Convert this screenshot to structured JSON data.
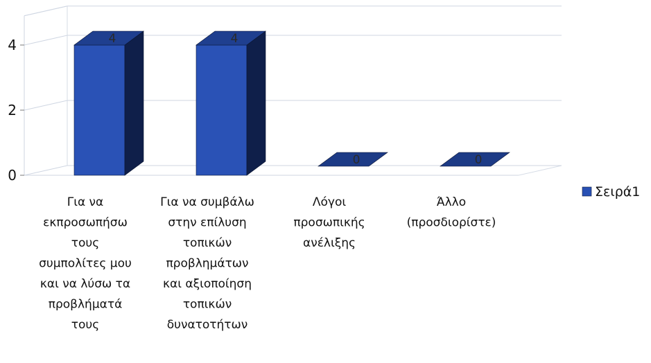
{
  "chart_data": {
    "type": "bar",
    "categories": [
      [
        "Για να",
        "εκπροσωπήσω",
        "τους",
        "συμπολίτες μου",
        "και να λύσω τα",
        "προβλήματά",
        "τους"
      ],
      [
        "Για να συμβάλω",
        "στην επίλυση",
        "τοπικών",
        "προβλημάτων",
        "και αξιοποίηση",
        "τοπικών",
        "δυνατοτήτων"
      ],
      [
        "Λόγοι",
        "προσωπικής",
        "ανέλιξης"
      ],
      [
        "Άλλο",
        "(προσδιορίστε)"
      ]
    ],
    "series": [
      {
        "name": "Σειρά1",
        "values": [
          4,
          4,
          0,
          0
        ],
        "color": "#2850b4"
      }
    ],
    "data_labels": [
      "4",
      "4",
      "0",
      "0"
    ],
    "y_ticks": [
      "0",
      "2",
      "4"
    ],
    "ylim": [
      0,
      4
    ],
    "grid": true,
    "legend_position": "right",
    "style": "3d-column"
  }
}
